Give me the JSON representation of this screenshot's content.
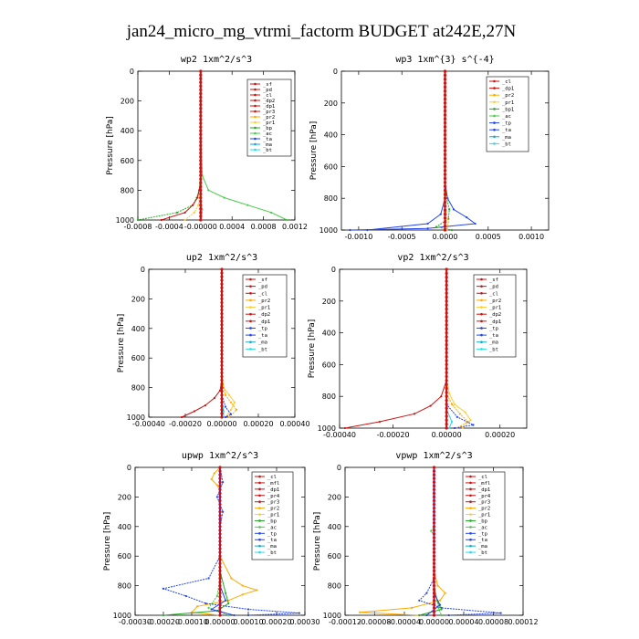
{
  "title": "jan24_micro_mg_vtrmi_factorm  BUDGET at242E,27N",
  "colors": {
    "_sf": "#cc1111",
    "_pd": "#cc1111",
    "_cl": "#cc1111",
    "_mfl": "#cc1111",
    "_dp1": "#cc1111",
    "_dp2": "#cc1111",
    "_pr4": "#cc1111",
    "_pr3": "#cc1111",
    "_pr2": "#ffaa00",
    "_pr1": "#ffcc33",
    "_bp": "#22aa22",
    "_bp1": "#22aa22",
    "_ac": "#44cc44",
    "_tp": "#2244ee",
    "_ta": "#2244ee",
    "_ma": "#11aacc",
    "_bt": "#22ddee"
  },
  "chart_data": [
    {
      "type": "line",
      "title": "wp2  1xm^2/s^3",
      "ylabel": "Pressure [hPa]",
      "xlim": [
        -0.0008,
        0.0012
      ],
      "ylim": [
        1000,
        0
      ],
      "xticks": [
        -0.0008,
        -0.0004,
        0.0,
        0.0004,
        0.0008,
        0.0012
      ],
      "xtick_labels": [
        "-0.0008",
        "-0.0004",
        "-0.00000",
        "0.0004",
        "0.0008",
        "0.0012"
      ],
      "yticks": [
        0,
        200,
        400,
        600,
        800,
        1000
      ],
      "ytick_labels": [
        "0",
        "200",
        "400",
        "600",
        "800",
        "1000"
      ],
      "legend": [
        "_sf",
        "_pd",
        "_cl",
        "_dp2",
        "_dp1",
        "_pr3",
        "_pr2",
        "_pr1",
        "_bp",
        "_ac",
        "_ta",
        "_ma",
        "_bt"
      ],
      "series": [
        {
          "name": "_ac",
          "y": [
            0,
            400,
            700,
            800,
            850,
            900,
            950,
            1000
          ],
          "x": [
            0,
            0,
            2e-05,
            0.0001,
            0.0003,
            0.0006,
            0.0009,
            0.0011
          ]
        },
        {
          "name": "_bp",
          "y": [
            0,
            700,
            800,
            850,
            900,
            950,
            1000
          ],
          "x": [
            0,
            0,
            -2e-05,
            -5e-05,
            -0.0001,
            -0.0003,
            -0.0008
          ]
        },
        {
          "name": "_dp1",
          "y": [
            0,
            750,
            850,
            900,
            950,
            1000
          ],
          "x": [
            0,
            0,
            -4e-05,
            -0.0001,
            -0.0002,
            -0.0005
          ]
        },
        {
          "name": "_pr1",
          "y": [
            0,
            800,
            900,
            950,
            1000
          ],
          "x": [
            0,
            0,
            -3e-05,
            -8e-05,
            -0.0002
          ]
        },
        {
          "name": "_bt",
          "y": [
            0,
            850,
            930,
            1000
          ],
          "x": [
            0,
            0,
            2e-05,
            1e-05
          ]
        },
        {
          "name": "_sf",
          "y": [
            0,
            500,
            900,
            1000
          ],
          "x": [
            0,
            0,
            0,
            0
          ]
        }
      ]
    },
    {
      "type": "line",
      "title": "wp3  1xm^{3} s^{-4}",
      "ylabel": "Pressure [hPa]",
      "xlim": [
        -0.0012,
        0.0012
      ],
      "ylim": [
        1000,
        0
      ],
      "xticks": [
        -0.001,
        -0.0005,
        0.0,
        0.0005,
        0.001
      ],
      "xtick_labels": [
        "-0.0010",
        "-0.0005",
        "0.0000",
        "0.0005",
        "0.0010"
      ],
      "yticks": [
        0,
        200,
        400,
        600,
        800,
        1000
      ],
      "ytick_labels": [
        "0",
        "200",
        "400",
        "600",
        "800",
        "1000"
      ],
      "legend": [
        "_cl",
        "_dp1",
        "_pr2",
        "_pr1",
        "_bp1",
        "_ac",
        "_tp",
        "_ta",
        "_ma",
        "_bt"
      ],
      "series": [
        {
          "name": "_ta",
          "y": [
            0,
            700,
            800,
            870,
            920,
            960,
            990,
            1000
          ],
          "x": [
            0,
            0,
            3e-05,
            0.0001,
            0.00025,
            0.00035,
            -0.0002,
            -0.0011
          ]
        },
        {
          "name": "_bp1",
          "y": [
            0,
            700,
            800,
            870,
            930,
            980,
            1000
          ],
          "x": [
            0,
            0,
            2e-05,
            5e-05,
            4e-05,
            -0.0001,
            8e-05
          ]
        },
        {
          "name": "_tp",
          "y": [
            0,
            800,
            900,
            960,
            1000
          ],
          "x": [
            0,
            0,
            -5e-05,
            -0.0002,
            -0.0009
          ]
        },
        {
          "name": "_pr1",
          "y": [
            0,
            850,
            950,
            1000
          ],
          "x": [
            0,
            0,
            4e-05,
            2e-05
          ]
        },
        {
          "name": "_cl",
          "y": [
            0,
            500,
            900,
            1000
          ],
          "x": [
            0,
            0,
            0,
            0
          ]
        }
      ]
    },
    {
      "type": "line",
      "title": "up2  1xm^2/s^3",
      "ylabel": "Pressure [hPa]",
      "xlim": [
        -0.0004,
        0.0004
      ],
      "ylim": [
        1000,
        0
      ],
      "xticks": [
        -0.0004,
        -0.0002,
        0.0,
        0.0002,
        0.0004
      ],
      "xtick_labels": [
        "-0.00040",
        "-0.00020",
        "0.00000",
        "0.00020",
        "0.00040"
      ],
      "yticks": [
        0,
        200,
        400,
        600,
        800,
        1000
      ],
      "ytick_labels": [
        "0",
        "200",
        "400",
        "600",
        "800",
        "1000"
      ],
      "legend": [
        "_sf",
        "_pd",
        "_cl",
        "_pr2",
        "_pr1",
        "_dp2",
        "_dp1",
        "_tp",
        "_ta",
        "_ma",
        "_bt"
      ],
      "series": [
        {
          "name": "_pr1",
          "y": [
            0,
            700,
            800,
            850,
            900,
            950,
            1000
          ],
          "x": [
            0,
            0,
            1e-05,
            4e-05,
            7e-05,
            5e-05,
            2e-05
          ]
        },
        {
          "name": "_pr2",
          "y": [
            0,
            750,
            850,
            900,
            950,
            1000
          ],
          "x": [
            0,
            0,
            2e-05,
            5e-05,
            8e-05,
            4e-05
          ]
        },
        {
          "name": "_dp1",
          "y": [
            0,
            750,
            820,
            870,
            920,
            960,
            1000
          ],
          "x": [
            0,
            0,
            -1e-05,
            -4e-05,
            -9e-05,
            -0.00015,
            -0.00022
          ]
        },
        {
          "name": "_tp",
          "y": [
            0,
            850,
            930,
            980,
            1000
          ],
          "x": [
            0,
            0,
            2e-05,
            5e-05,
            2e-05
          ]
        },
        {
          "name": "_bt",
          "y": [
            0,
            880,
            960,
            1000
          ],
          "x": [
            0,
            0,
            1e-05,
            1e-05
          ]
        },
        {
          "name": "_sf",
          "y": [
            0,
            500,
            900,
            1000
          ],
          "x": [
            0,
            0,
            0,
            0
          ]
        }
      ]
    },
    {
      "type": "line",
      "title": "vp2  1xm^2/s^3",
      "ylabel": "Pressure [hPa]",
      "xlim": [
        -0.0004,
        0.0003
      ],
      "ylim": [
        1000,
        0
      ],
      "xticks": [
        -0.0004,
        -0.0002,
        0.0,
        0.0002
      ],
      "xtick_labels": [
        "-0.00040",
        "-0.00020",
        "0.00000",
        "0.00020"
      ],
      "yticks": [
        0,
        200,
        400,
        600,
        800,
        1000
      ],
      "ytick_labels": [
        "0",
        "200",
        "400",
        "600",
        "800",
        "1000"
      ],
      "legend": [
        "_sf",
        "_pd",
        "_cl",
        "_pr2",
        "_pr1",
        "_dp2",
        "_dp1",
        "_tp",
        "_ta",
        "_ma",
        "_bt"
      ],
      "series": [
        {
          "name": "_pr1",
          "y": [
            0,
            700,
            780,
            850,
            900,
            950,
            1000
          ],
          "x": [
            0,
            0,
            1e-05,
            3e-05,
            7e-05,
            9e-05,
            6e-05
          ]
        },
        {
          "name": "_pr2",
          "y": [
            0,
            780,
            850,
            910,
            960,
            1000
          ],
          "x": [
            0,
            0,
            2e-05,
            5e-05,
            8e-05,
            4e-05
          ]
        },
        {
          "name": "_dp1",
          "y": [
            0,
            700,
            800,
            860,
            910,
            960,
            1000
          ],
          "x": [
            0,
            0,
            -2e-05,
            -6e-05,
            -0.00012,
            -0.00025,
            -0.00038
          ]
        },
        {
          "name": "_ta",
          "y": [
            0,
            850,
            930,
            980,
            1000
          ],
          "x": [
            0,
            0,
            4e-05,
            0.0001,
            3e-05
          ]
        },
        {
          "name": "_bt",
          "y": [
            0,
            880,
            960,
            1000
          ],
          "x": [
            0,
            0,
            2e-05,
            1e-05
          ]
        },
        {
          "name": "_sf",
          "y": [
            0,
            500,
            900,
            1000
          ],
          "x": [
            0,
            0,
            0,
            0
          ]
        }
      ]
    },
    {
      "type": "line",
      "title": "upwp  1xm^2/s^3",
      "ylabel": "Pressure [hPa]",
      "xlim": [
        -0.0003,
        0.0003
      ],
      "ylim": [
        1000,
        0
      ],
      "xticks": [
        -0.0003,
        -0.0002,
        -0.0001,
        0.0,
        0.0001,
        0.0002,
        0.0003
      ],
      "xtick_labels": [
        "-0.00030",
        "-0.00020",
        "-0.00010",
        "0.00000",
        "0.00010",
        "0.00020",
        "0.00030"
      ],
      "yticks": [
        0,
        200,
        400,
        600,
        800,
        1000
      ],
      "ytick_labels": [
        "0",
        "200",
        "400",
        "600",
        "800",
        "1000"
      ],
      "legend": [
        "_cl",
        "_mfl",
        "_dp1",
        "_pr4",
        "_pr3",
        "_pr2",
        "_pr1",
        "_bp",
        "_ac",
        "_tp",
        "_ta",
        "_ma",
        "_bt"
      ],
      "series": [
        {
          "name": "_pr2",
          "y": [
            0,
            40,
            80,
            120,
            160,
            600,
            750,
            800,
            830,
            860,
            900,
            940,
            980,
            1000
          ],
          "x": [
            0,
            -2e-05,
            -3e-05,
            -1e-05,
            0,
            0,
            4e-05,
            8e-05,
            0.00013,
            8e-05,
            3e-05,
            -8e-05,
            -0.0001,
            0
          ]
        },
        {
          "name": "_ta",
          "y": [
            0,
            100,
            200,
            300,
            400,
            600,
            750,
            820,
            870,
            920,
            960,
            985,
            1000
          ],
          "x": [
            0,
            1e-05,
            -1e-05,
            1e-05,
            0,
            0,
            -4e-05,
            -0.0002,
            -0.00012,
            -5e-05,
            0.0001,
            0.00028,
            0.0001
          ]
        },
        {
          "name": "_bp",
          "y": [
            0,
            700,
            850,
            920,
            970,
            1000
          ],
          "x": [
            0,
            0,
            2e-05,
            3e-05,
            -1e-05,
            -0.0002
          ]
        },
        {
          "name": "_ac",
          "y": [
            0,
            750,
            870,
            950,
            1000
          ],
          "x": [
            0,
            0,
            -1e-05,
            -4e-05,
            3e-05
          ]
        },
        {
          "name": "_tp",
          "y": [
            0,
            800,
            900,
            960,
            1000
          ],
          "x": [
            0,
            0,
            2e-05,
            -3e-05,
            5e-05
          ]
        },
        {
          "name": "_cl",
          "y": [
            0,
            500,
            900,
            1000
          ],
          "x": [
            0,
            0,
            0,
            0
          ]
        }
      ]
    },
    {
      "type": "line",
      "title": "vpwp  1xm^2/s^3",
      "ylabel": "Pressure [hPa]",
      "xlim": [
        -0.00012,
        0.00012
      ],
      "ylim": [
        1000,
        0
      ],
      "xticks": [
        -0.00012,
        -8e-05,
        -4e-05,
        0.0,
        4e-05,
        8e-05,
        0.00012
      ],
      "xtick_labels": [
        "-0.00012",
        "-0.00008",
        "-0.00004",
        "0.00000",
        "0.00004",
        "0.00008",
        "0.00012"
      ],
      "yticks": [
        0,
        200,
        400,
        600,
        800,
        1000
      ],
      "ytick_labels": [
        "0",
        "200",
        "400",
        "600",
        "800",
        "1000"
      ],
      "legend": [
        "_cl",
        "_mfl",
        "_dp1",
        "_pr4",
        "_pr3",
        "_pr2",
        "_pr1",
        "_bp",
        "_ac",
        "_tp",
        "_ta",
        "_ma",
        "_bt"
      ],
      "series": [
        {
          "name": "_pr2",
          "y": [
            0,
            700,
            800,
            850,
            900,
            950,
            980,
            1000
          ],
          "x": [
            0,
            0,
            5e-06,
            1.5e-05,
            8e-06,
            -3e-05,
            -0.0001,
            -2e-05
          ]
        },
        {
          "name": "_ta",
          "y": [
            0,
            750,
            850,
            900,
            950,
            985,
            1000
          ],
          "x": [
            0,
            0,
            -1e-05,
            -2e-05,
            1e-05,
            9e-05,
            2e-05
          ]
        },
        {
          "name": "_bp",
          "y": [
            0,
            800,
            900,
            960,
            1000
          ],
          "x": [
            0,
            0,
            4e-06,
            1e-05,
            -2e-05
          ]
        },
        {
          "name": "_ac",
          "y": [
            0,
            400,
            430,
            460,
            800,
            950,
            1000
          ],
          "x": [
            0,
            0,
            -4e-06,
            0,
            0,
            6e-06,
            1e-05
          ]
        },
        {
          "name": "_tp",
          "y": [
            0,
            850,
            930,
            1000
          ],
          "x": [
            0,
            0,
            8e-06,
            -1e-05
          ]
        },
        {
          "name": "_cl",
          "y": [
            0,
            500,
            900,
            1000
          ],
          "x": [
            0,
            0,
            0,
            0
          ]
        }
      ]
    }
  ]
}
